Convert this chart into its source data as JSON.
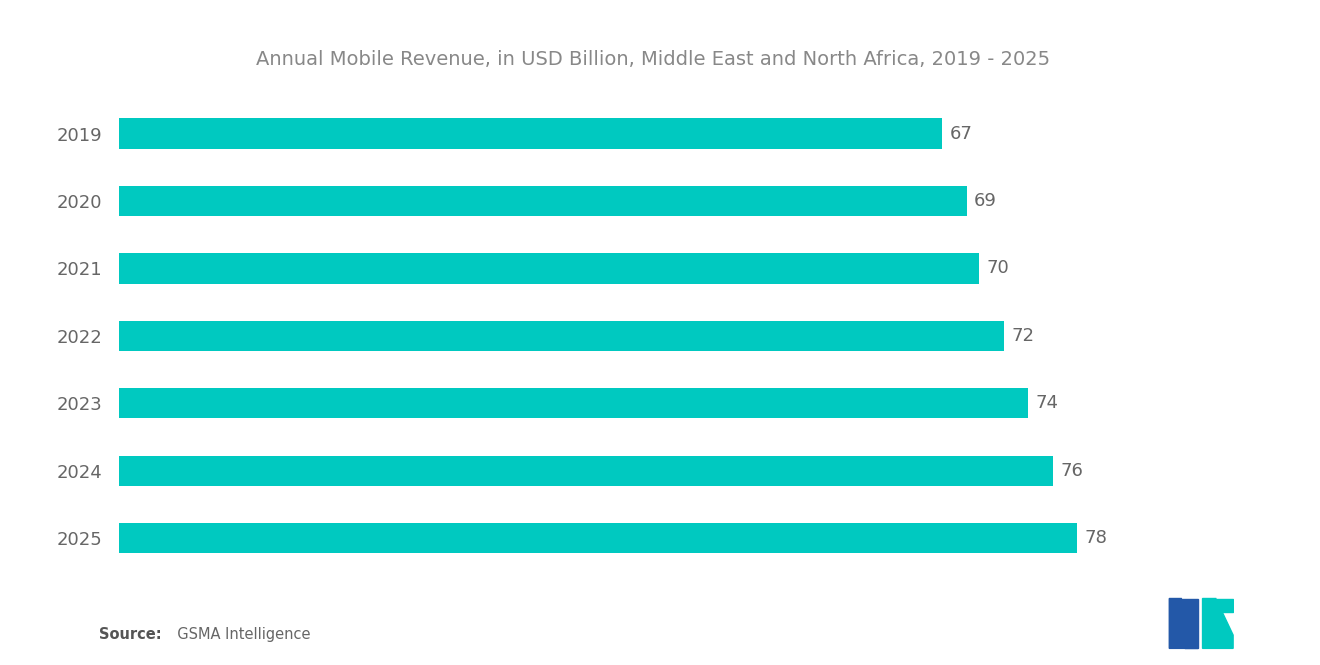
{
  "title": "Annual Mobile Revenue, in USD Billion, Middle East and North Africa, 2019 - 2025",
  "years": [
    "2019",
    "2020",
    "2021",
    "2022",
    "2023",
    "2024",
    "2025"
  ],
  "values": [
    67,
    69,
    70,
    72,
    74,
    76,
    78
  ],
  "bar_color": "#00C9C0",
  "background_color": "#ffffff",
  "title_fontsize": 14,
  "label_fontsize": 13,
  "value_fontsize": 13,
  "source_bold": "Source:",
  "source_rest": "  GSMA Intelligence",
  "xlim": [
    0,
    87
  ]
}
